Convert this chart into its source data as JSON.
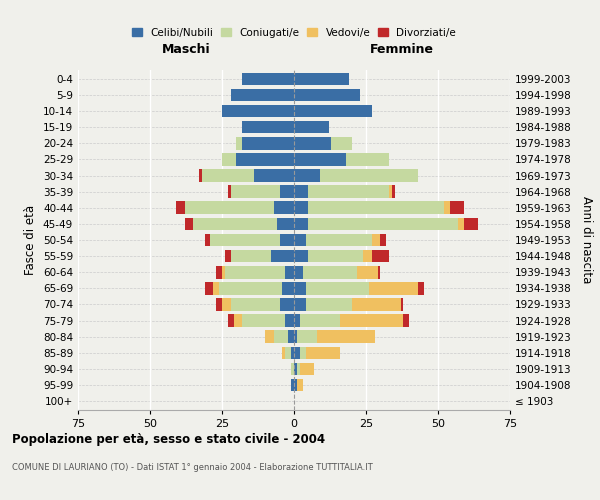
{
  "age_groups": [
    "100+",
    "95-99",
    "90-94",
    "85-89",
    "80-84",
    "75-79",
    "70-74",
    "65-69",
    "60-64",
    "55-59",
    "50-54",
    "45-49",
    "40-44",
    "35-39",
    "30-34",
    "25-29",
    "20-24",
    "15-19",
    "10-14",
    "5-9",
    "0-4"
  ],
  "birth_years": [
    "≤ 1903",
    "1904-1908",
    "1909-1913",
    "1914-1918",
    "1919-1923",
    "1924-1928",
    "1929-1933",
    "1934-1938",
    "1939-1943",
    "1944-1948",
    "1949-1953",
    "1954-1958",
    "1959-1963",
    "1964-1968",
    "1969-1973",
    "1974-1978",
    "1979-1983",
    "1984-1988",
    "1989-1993",
    "1994-1998",
    "1999-2003"
  ],
  "maschi": {
    "celibinubili": [
      0,
      1,
      0,
      1,
      2,
      3,
      5,
      4,
      3,
      8,
      5,
      6,
      7,
      5,
      14,
      20,
      18,
      18,
      25,
      22,
      18
    ],
    "coniugati": [
      0,
      0,
      1,
      2,
      5,
      15,
      17,
      22,
      21,
      14,
      24,
      29,
      31,
      17,
      18,
      5,
      2,
      0,
      0,
      0,
      0
    ],
    "vedovi": [
      0,
      0,
      0,
      1,
      3,
      3,
      3,
      2,
      1,
      0,
      0,
      0,
      0,
      0,
      0,
      0,
      0,
      0,
      0,
      0,
      0
    ],
    "divorziati": [
      0,
      0,
      0,
      0,
      0,
      2,
      2,
      3,
      2,
      2,
      2,
      3,
      3,
      1,
      1,
      0,
      0,
      0,
      0,
      0,
      0
    ]
  },
  "femmine": {
    "celibinubili": [
      0,
      1,
      1,
      2,
      1,
      2,
      4,
      4,
      3,
      5,
      4,
      5,
      5,
      5,
      9,
      18,
      13,
      12,
      27,
      23,
      19
    ],
    "coniugate": [
      0,
      0,
      1,
      2,
      7,
      14,
      16,
      22,
      19,
      19,
      23,
      52,
      47,
      28,
      34,
      15,
      7,
      0,
      0,
      0,
      0
    ],
    "vedove": [
      0,
      2,
      5,
      12,
      20,
      22,
      17,
      17,
      7,
      3,
      3,
      2,
      2,
      1,
      0,
      0,
      0,
      0,
      0,
      0,
      0
    ],
    "divorziate": [
      0,
      0,
      0,
      0,
      0,
      2,
      1,
      2,
      1,
      6,
      2,
      5,
      5,
      1,
      0,
      0,
      0,
      0,
      0,
      0,
      0
    ]
  },
  "colors": {
    "celibinubili": "#3a6ea5",
    "coniugati": "#c5d9a0",
    "vedovi": "#f0c060",
    "divorziati": "#c0282a"
  },
  "xlim": 75,
  "title": "Popolazione per età, sesso e stato civile - 2004",
  "subtitle": "COMUNE DI LAURIANO (TO) - Dati ISTAT 1° gennaio 2004 - Elaborazione TUTTITALIA.IT",
  "ylabel_left": "Fasce di età",
  "ylabel_right": "Anni di nascita",
  "header_left": "Maschi",
  "header_right": "Femmine",
  "legend_labels": [
    "Celibi/Nubili",
    "Coniugati/e",
    "Vedovi/e",
    "Divorziati/e"
  ],
  "bg_color": "#f0f0eb"
}
